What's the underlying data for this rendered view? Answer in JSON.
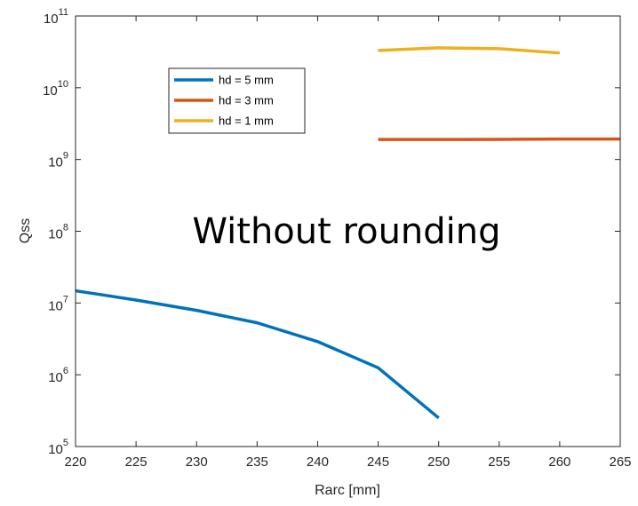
{
  "chart_data": {
    "type": "line",
    "xlabel": "Rarc [mm]",
    "ylabel": "Qss",
    "xlim": [
      220,
      265
    ],
    "ylim": [
      100000,
      100000000000
    ],
    "yscale": "log",
    "x_ticks": [
      220,
      225,
      230,
      235,
      240,
      245,
      250,
      255,
      260,
      265
    ],
    "y_ticks": [
      {
        "value": 100000,
        "base": "10",
        "exp": "5"
      },
      {
        "value": 1000000,
        "base": "10",
        "exp": "6"
      },
      {
        "value": 10000000,
        "base": "10",
        "exp": "7"
      },
      {
        "value": 100000000,
        "base": "10",
        "exp": "8"
      },
      {
        "value": 1000000000,
        "base": "10",
        "exp": "9"
      },
      {
        "value": 10000000000,
        "base": "10",
        "exp": "10"
      },
      {
        "value": 100000000000,
        "base": "10",
        "exp": "11"
      }
    ],
    "grid": false,
    "legend_position": "upper-left",
    "annotation": "Without rounding",
    "series": [
      {
        "name": "hd = 5 mm",
        "color": "#0072BD",
        "x": [
          220,
          225,
          230,
          235,
          240,
          245,
          250
        ],
        "y": [
          14800000,
          11000000,
          7900000,
          5300000,
          2900000,
          1250000,
          250000
        ]
      },
      {
        "name": "hd = 3 mm",
        "color": "#D95319",
        "x": [
          245,
          250,
          255,
          260,
          265
        ],
        "y": [
          1900000000,
          1900000000,
          1910000000,
          1930000000,
          1930000000
        ]
      },
      {
        "name": "hd = 1 mm",
        "color": "#EDB120",
        "x": [
          245,
          250,
          255,
          260
        ],
        "y": [
          33000000000,
          36000000000,
          35000000000,
          30500000000
        ]
      }
    ]
  }
}
